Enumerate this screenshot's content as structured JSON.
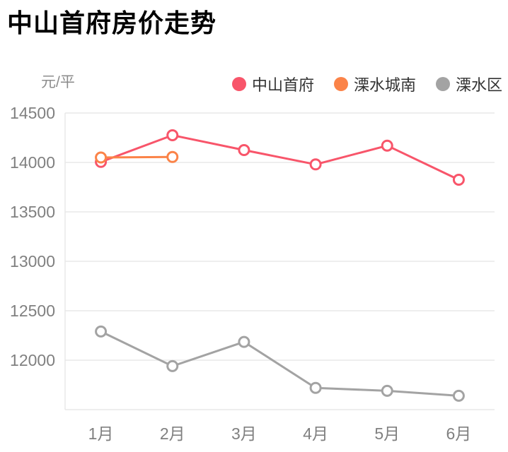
{
  "title": "中山首府房价走势",
  "y_axis_unit_label": "元/平",
  "legend": [
    {
      "label": "中山首府",
      "color": "#F8556A"
    },
    {
      "label": "溧水城南",
      "color": "#FB8348"
    },
    {
      "label": "溧水区",
      "color": "#A3A3A3"
    }
  ],
  "style": {
    "title_color": "#000000",
    "legend_text_color": "#333333",
    "axis_text_color": "#808080",
    "unit_label_color": "#8C8C8C",
    "grid_color": "#E8E8E8",
    "marker_fill": "#FFFFFF"
  },
  "chart_data": {
    "type": "line",
    "title": "中山首府房价走势",
    "xlabel": "",
    "ylabel": "元/平",
    "categories": [
      "1月",
      "2月",
      "3月",
      "4月",
      "5月",
      "6月"
    ],
    "series": [
      {
        "name": "中山首府",
        "color": "#F8556A",
        "values": [
          14005,
          14275,
          14125,
          13980,
          14170,
          13825
        ]
      },
      {
        "name": "溧水城南",
        "color": "#FB8348",
        "values": [
          14050,
          14055,
          null,
          null,
          null,
          null
        ]
      },
      {
        "name": "溧水区",
        "color": "#A3A3A3",
        "values": [
          12290,
          11940,
          12185,
          11720,
          11690,
          11640
        ]
      }
    ],
    "ylim": [
      11500,
      14500
    ],
    "yticks": [
      12000,
      12500,
      13000,
      13500,
      14000,
      14500
    ],
    "grid": true,
    "legend_position": "top-right",
    "marker": "open-circle"
  }
}
